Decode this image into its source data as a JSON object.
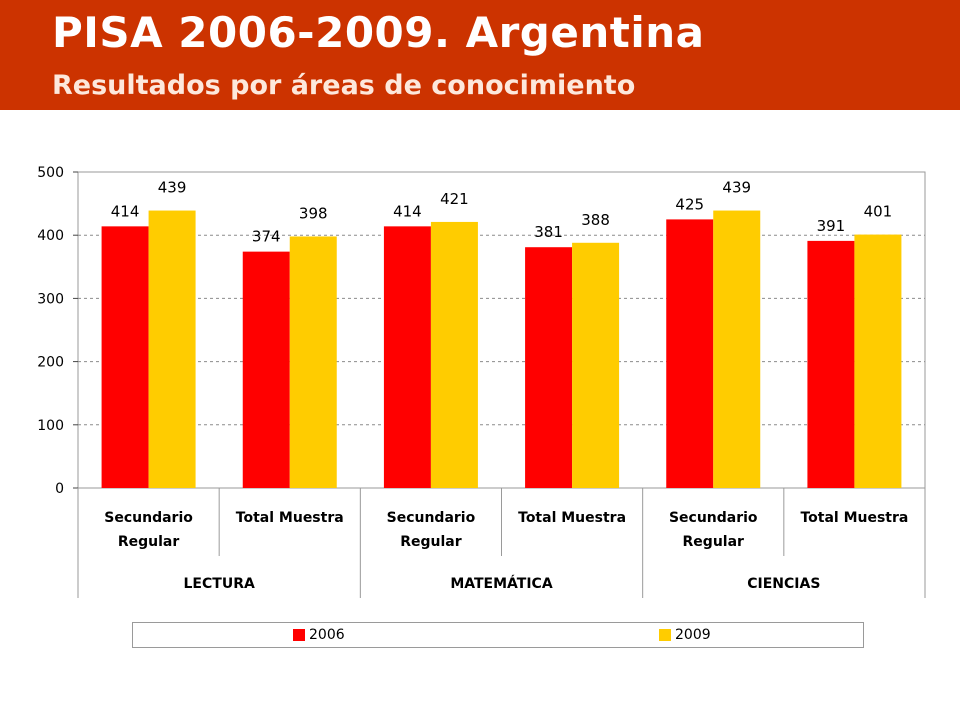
{
  "header": {
    "title": "PISA 2006-2009. Argentina",
    "subtitle": "Resultados por áreas de conocimiento"
  },
  "colors": {
    "banner": "#cc3300",
    "series_2006": "#ff0000",
    "series_2009": "#ffcc00"
  },
  "chart_data": {
    "type": "bar",
    "categories": [
      "Secundario Regular",
      "Total Muestra",
      "Secundario Regular",
      "Total Muestra",
      "Secundario Regular",
      "Total Muestra"
    ],
    "groups": [
      {
        "label": "LECTURA",
        "categories": [
          "Secundario Regular",
          "Total Muestra"
        ]
      },
      {
        "label": "MATEMÁTICA",
        "categories": [
          "Secundario Regular",
          "Total Muestra"
        ]
      },
      {
        "label": "CIENCIAS",
        "categories": [
          "Secundario Regular",
          "Total Muestra"
        ]
      }
    ],
    "series": [
      {
        "name": "2006",
        "color": "#ff0000",
        "values": [
          414,
          374,
          414,
          381,
          425,
          391
        ]
      },
      {
        "name": "2009",
        "color": "#ffcc00",
        "values": [
          439,
          398,
          421,
          388,
          439,
          401
        ]
      }
    ],
    "ylim": [
      0,
      500
    ],
    "yticks": [
      0,
      100,
      200,
      300,
      400,
      500
    ],
    "grid": "dashed horizontal",
    "legend_position": "bottom",
    "data_labels": true
  }
}
